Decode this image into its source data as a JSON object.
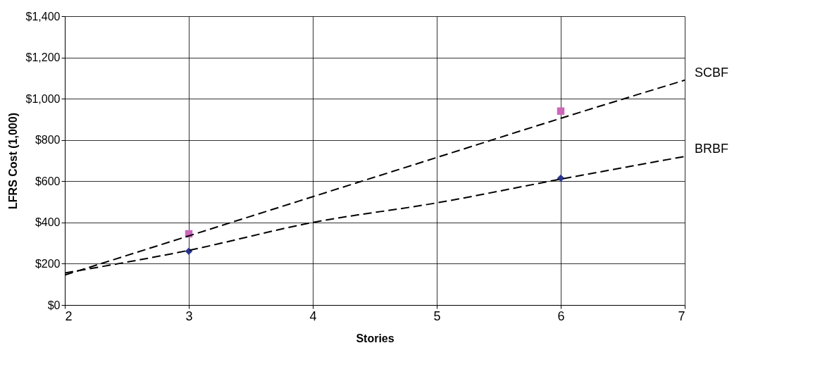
{
  "chart_data": {
    "type": "scatter",
    "xlabel": "Stories",
    "ylabel": "LFRS Cost (1,000)",
    "xlim": [
      2,
      7
    ],
    "xticks": [
      2,
      3,
      4,
      5,
      6,
      7
    ],
    "ylim": [
      0,
      1400
    ],
    "yticks": [
      {
        "value": 0,
        "label": "$0"
      },
      {
        "value": 200,
        "label": "$200"
      },
      {
        "value": 400,
        "label": "$400"
      },
      {
        "value": 600,
        "label": "$600"
      },
      {
        "value": 800,
        "label": "$800"
      },
      {
        "value": 1000,
        "label": "$1,000"
      },
      {
        "value": 1200,
        "label": "$1,200"
      },
      {
        "value": 1400,
        "label": "$1,400"
      }
    ],
    "grid": true,
    "series": [
      {
        "marker": "square",
        "color": "#cc66bb",
        "x": [
          3,
          6
        ],
        "values": [
          345,
          940
        ]
      },
      {
        "marker": "diamond",
        "color": "#283593",
        "x": [
          3,
          6
        ],
        "values": [
          260,
          615
        ]
      },
      {
        "type": "line",
        "name": "SCBF",
        "line_style": "dashed",
        "color": "#000000",
        "x": [
          2,
          3,
          4,
          5,
          6,
          7
        ],
        "values": [
          145,
          335,
          525,
          715,
          905,
          1090
        ]
      },
      {
        "type": "line",
        "name": "BRBF",
        "line_style": "dashed",
        "color": "#000000",
        "x": [
          2,
          3,
          4,
          5,
          6,
          7
        ],
        "values": [
          155,
          265,
          400,
          495,
          610,
          720
        ]
      }
    ]
  }
}
